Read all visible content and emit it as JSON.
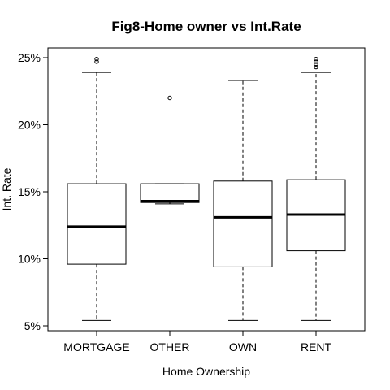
{
  "chart_data": {
    "type": "boxplot",
    "title": "Fig8-Home owner vs Int.Rate",
    "xlabel": "Home Ownership",
    "ylabel": "Int. Rate",
    "categories": [
      "MORTGAGE",
      "OTHER",
      "OWN",
      "RENT"
    ],
    "ylim": [
      5,
      25
    ],
    "y_ticks": [
      5,
      10,
      15,
      20,
      25
    ],
    "y_tick_labels": [
      "5%",
      "10%",
      "15%",
      "20%",
      "25%"
    ],
    "boxes": [
      {
        "category": "MORTGAGE",
        "whisker_low": 5.4,
        "q1": 9.6,
        "median": 12.4,
        "q3": 15.6,
        "whisker_high": 23.9,
        "outliers": [
          24.7,
          24.9
        ]
      },
      {
        "category": "OTHER",
        "whisker_low": 14.1,
        "q1": 14.2,
        "median": 14.3,
        "q3": 15.6,
        "whisker_high": 15.6,
        "outliers": [
          22.0
        ]
      },
      {
        "category": "OWN",
        "whisker_low": 5.4,
        "q1": 9.4,
        "median": 13.1,
        "q3": 15.8,
        "whisker_high": 23.3,
        "outliers": []
      },
      {
        "category": "RENT",
        "whisker_low": 5.4,
        "q1": 10.6,
        "median": 13.3,
        "q3": 15.9,
        "whisker_high": 23.9,
        "outliers": [
          24.3,
          24.5,
          24.7,
          24.9
        ]
      }
    ],
    "grid": false,
    "colors": {
      "box_fill": "#ffffff",
      "stroke": "#000000",
      "background": "#ffffff"
    }
  }
}
